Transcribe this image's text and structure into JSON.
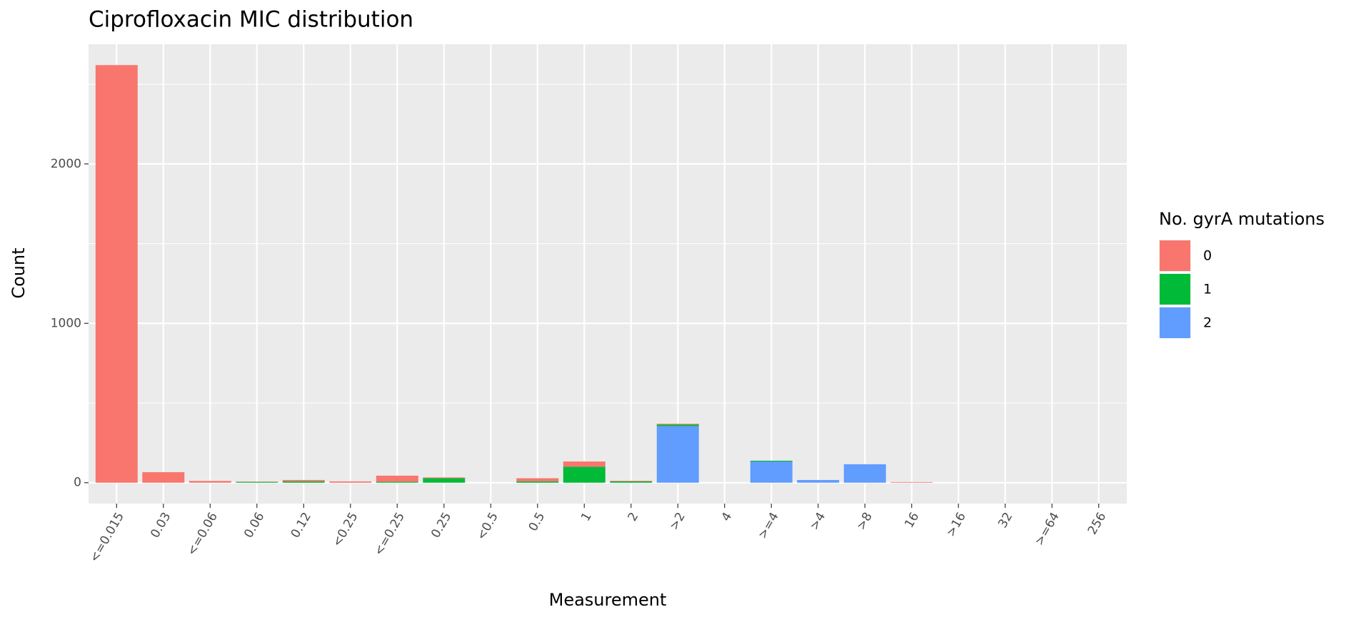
{
  "chart_data": {
    "type": "stacked_bar",
    "title": "Ciprofloxacin MIC distribution",
    "x_label": "Measurement",
    "y_label": "Count",
    "legend_title": "No. gyrA mutations",
    "legend_position": "right",
    "categories": [
      "<=0.015",
      "0.03",
      "<=0.06",
      "0.06",
      "0.12",
      "<0.25",
      "<=0.25",
      "0.25",
      "<0.5",
      "0.5",
      "1",
      "2",
      ">2",
      "4",
      ">=4",
      ">4",
      ">8",
      "16",
      ">16",
      "32",
      ">=64",
      "256"
    ],
    "series": [
      {
        "name": "0",
        "color": "#F8766D",
        "values": [
          2620,
          66,
          11,
          2,
          9,
          8,
          38,
          5,
          0,
          20,
          33,
          4,
          5,
          0,
          0,
          0,
          0,
          4,
          0,
          0,
          0,
          0
        ]
      },
      {
        "name": "1",
        "color": "#00BA38",
        "values": [
          0,
          0,
          0,
          5,
          8,
          0,
          6,
          28,
          0,
          8,
          100,
          8,
          10,
          0,
          5,
          0,
          0,
          0,
          0,
          0,
          0,
          0
        ]
      },
      {
        "name": "2",
        "color": "#619CFF",
        "values": [
          0,
          0,
          0,
          0,
          0,
          0,
          0,
          0,
          0,
          0,
          0,
          0,
          355,
          0,
          133,
          17,
          116,
          0,
          0,
          0,
          0,
          0
        ]
      }
    ],
    "ylim": [
      -131,
      2751
    ],
    "yticks": [
      0,
      1000,
      2000
    ],
    "grid": true
  }
}
